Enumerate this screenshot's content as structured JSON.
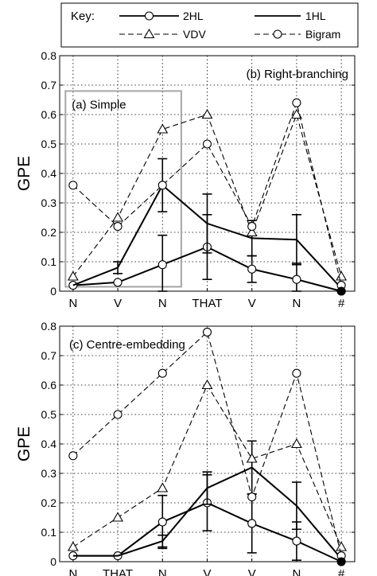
{
  "legend": {
    "title": "Key:",
    "entries": [
      {
        "label": "2HL",
        "line": "solid",
        "marker": "circle"
      },
      {
        "label": "1HL",
        "line": "solid",
        "marker": "none"
      },
      {
        "label": "VDV",
        "line": "dashed",
        "marker": "triangle"
      },
      {
        "label": "Bigram",
        "line": "dashed",
        "marker": "circle"
      }
    ]
  },
  "colors": {
    "ink": "#000000",
    "inset_box": "#a6a6a6",
    "grid": "#000000"
  },
  "chart_data": [
    {
      "type": "line",
      "panel_label": "(b) Right-branching",
      "inset_label": "(a) Simple",
      "ylabel": "GPE",
      "categories": [
        "N",
        "V",
        "N",
        "THAT",
        "V",
        "N",
        "#"
      ],
      "yticks": [
        "0",
        "0.1",
        "0.2",
        "0.3",
        "0.4",
        "0.5",
        "0.6",
        "0.7",
        "0.8"
      ],
      "ylim": [
        0,
        0.8
      ],
      "grid": true,
      "inset_span": [
        0,
        2
      ],
      "series": [
        {
          "name": "2HL",
          "line": "solid",
          "marker": "circle",
          "values": [
            0.02,
            0.03,
            0.09,
            0.15,
            0.075,
            0.04,
            0.0
          ],
          "errors": [
            null,
            null,
            0.1,
            0.11,
            0.045,
            0.055,
            null
          ]
        },
        {
          "name": "1HL",
          "line": "solid",
          "marker": "none",
          "values": [
            0.02,
            0.08,
            0.36,
            0.23,
            0.18,
            0.175,
            0.01
          ],
          "errors": [
            null,
            0.02,
            0.09,
            0.1,
            0.06,
            0.085,
            null
          ]
        },
        {
          "name": "VDV",
          "line": "dashed",
          "marker": "triangle",
          "values": [
            0.05,
            0.25,
            0.55,
            0.6,
            0.2,
            0.6,
            0.05
          ]
        },
        {
          "name": "Bigram",
          "line": "dashed",
          "marker": "circle",
          "values": [
            0.36,
            0.22,
            0.36,
            0.5,
            0.22,
            0.64,
            0.02
          ]
        }
      ]
    },
    {
      "type": "line",
      "panel_label": "(c) Centre-embedding",
      "ylabel": "GPE",
      "categories": [
        "N",
        "THAT",
        "N",
        "V",
        "V",
        "N",
        "#"
      ],
      "yticks": [
        "0",
        "0.1",
        "0.2",
        "0.3",
        "0.4",
        "0.5",
        "0.6",
        "0.7",
        "0.8"
      ],
      "ylim": [
        0,
        0.8
      ],
      "grid": true,
      "series": [
        {
          "name": "2HL",
          "line": "solid",
          "marker": "circle",
          "values": [
            0.02,
            0.02,
            0.135,
            0.2,
            0.13,
            0.07,
            0.0
          ],
          "errors": [
            null,
            null,
            0.09,
            0.095,
            0.1,
            0.065,
            null
          ]
        },
        {
          "name": "1HL",
          "line": "solid",
          "marker": "none",
          "values": [
            0.02,
            0.02,
            0.07,
            0.25,
            0.32,
            0.19,
            0.01
          ],
          "errors": [
            null,
            null,
            0.02,
            0.055,
            0.09,
            0.08,
            null
          ]
        },
        {
          "name": "VDV",
          "line": "dashed",
          "marker": "triangle",
          "values": [
            0.05,
            0.15,
            0.25,
            0.6,
            0.35,
            0.4,
            0.05
          ]
        },
        {
          "name": "Bigram",
          "line": "dashed",
          "marker": "circle",
          "values": [
            0.36,
            0.5,
            0.64,
            0.78,
            0.22,
            0.64,
            0.02
          ]
        }
      ]
    }
  ]
}
